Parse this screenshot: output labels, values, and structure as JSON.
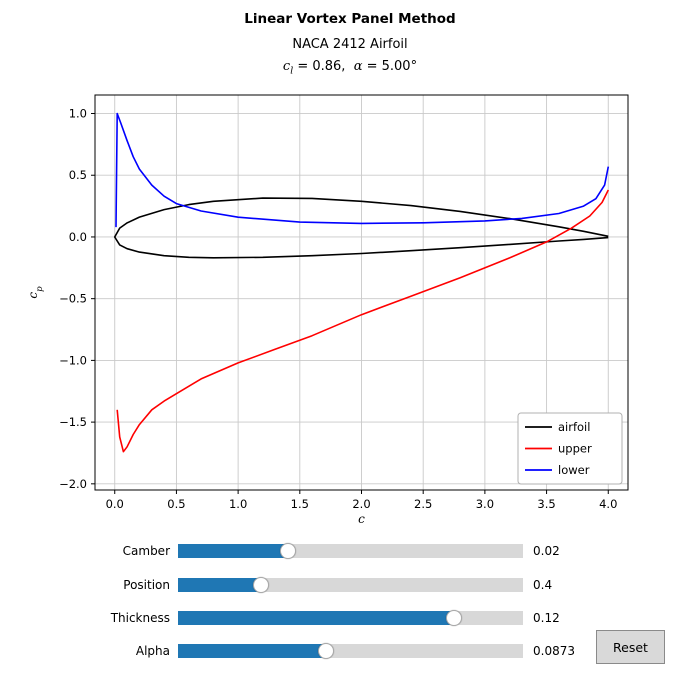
{
  "chart_data": {
    "type": "line",
    "title": "Linear Vortex Panel Method",
    "subtitle": "NACA 2412 Airfoil",
    "annotation": {
      "var1": "c",
      "sub1": "l",
      "mid": " = 0.86,  ",
      "var2": "α",
      "tail": " = 5.00°"
    },
    "xlabel": "c",
    "ylabel": {
      "var": "c",
      "sub": "p"
    },
    "xlim": [
      -0.16,
      4.16
    ],
    "ylim": [
      -2.05,
      1.15
    ],
    "xticks": [
      0,
      0.5,
      1,
      1.5,
      2,
      2.5,
      3,
      3.5,
      4
    ],
    "xtick_labels": [
      "0.0",
      "0.5",
      "1.0",
      "1.5",
      "2.0",
      "2.5",
      "3.0",
      "3.5",
      "4.0"
    ],
    "yticks": [
      -2,
      -1.5,
      -1,
      -0.5,
      0,
      0.5,
      1
    ],
    "ytick_labels": [
      "−2.0",
      "−1.5",
      "−1.0",
      "−0.5",
      "0.0",
      "0.5",
      "1.0"
    ],
    "grid": true,
    "grid_color": "#c9c9c9",
    "legend": {
      "position": "lower right"
    },
    "series": [
      {
        "name": "airfoil",
        "color": "#000000",
        "x": [
          4.0,
          3.8,
          3.6,
          3.2,
          2.8,
          2.4,
          2.0,
          1.6,
          1.2,
          0.8,
          0.6,
          0.4,
          0.2,
          0.1,
          0.04,
          0.0,
          0.04,
          0.1,
          0.2,
          0.4,
          0.6,
          0.8,
          1.2,
          1.6,
          2.0,
          2.4,
          2.8,
          3.2,
          3.6,
          3.8,
          4.0
        ],
        "y": [
          0.005,
          0.046,
          0.082,
          0.149,
          0.207,
          0.254,
          0.289,
          0.312,
          0.315,
          0.289,
          0.262,
          0.222,
          0.161,
          0.114,
          0.072,
          0.0,
          -0.064,
          -0.095,
          -0.123,
          -0.152,
          -0.165,
          -0.169,
          -0.165,
          -0.152,
          -0.134,
          -0.111,
          -0.087,
          -0.06,
          -0.033,
          -0.02,
          -0.005
        ]
      },
      {
        "name": "upper",
        "color": "#ff0000",
        "x": [
          0.02,
          0.04,
          0.07,
          0.1,
          0.15,
          0.2,
          0.3,
          0.4,
          0.5,
          0.7,
          1.0,
          1.3,
          1.6,
          2.0,
          2.4,
          2.8,
          3.2,
          3.5,
          3.7,
          3.85,
          3.95,
          4.0
        ],
        "y": [
          -1.4,
          -1.62,
          -1.74,
          -1.7,
          -1.6,
          -1.52,
          -1.4,
          -1.33,
          -1.27,
          -1.15,
          -1.02,
          -0.91,
          -0.8,
          -0.63,
          -0.48,
          -0.33,
          -0.17,
          -0.04,
          0.07,
          0.17,
          0.28,
          0.38
        ]
      },
      {
        "name": "lower",
        "color": "#0000ff",
        "x": [
          0.01,
          0.02,
          0.05,
          0.1,
          0.15,
          0.2,
          0.3,
          0.4,
          0.5,
          0.7,
          1.0,
          1.5,
          2.0,
          2.5,
          3.0,
          3.3,
          3.6,
          3.8,
          3.9,
          3.97,
          4.0
        ],
        "y": [
          0.08,
          1.0,
          0.92,
          0.78,
          0.65,
          0.55,
          0.42,
          0.33,
          0.27,
          0.21,
          0.16,
          0.12,
          0.11,
          0.115,
          0.13,
          0.15,
          0.19,
          0.25,
          0.31,
          0.42,
          0.57
        ]
      }
    ]
  },
  "controls": {
    "slider_fill_color": "#1f77b4",
    "slider_track_color": "#d8d8d8",
    "sliders": [
      {
        "label": "Camber",
        "value": "0.02",
        "fill_percent": 32
      },
      {
        "label": "Position",
        "value": "0.4",
        "fill_percent": 24
      },
      {
        "label": "Thickness",
        "value": "0.12",
        "fill_percent": 80
      },
      {
        "label": "Alpha",
        "value": "0.0873",
        "fill_percent": 43
      }
    ],
    "reset_label": "Reset"
  }
}
